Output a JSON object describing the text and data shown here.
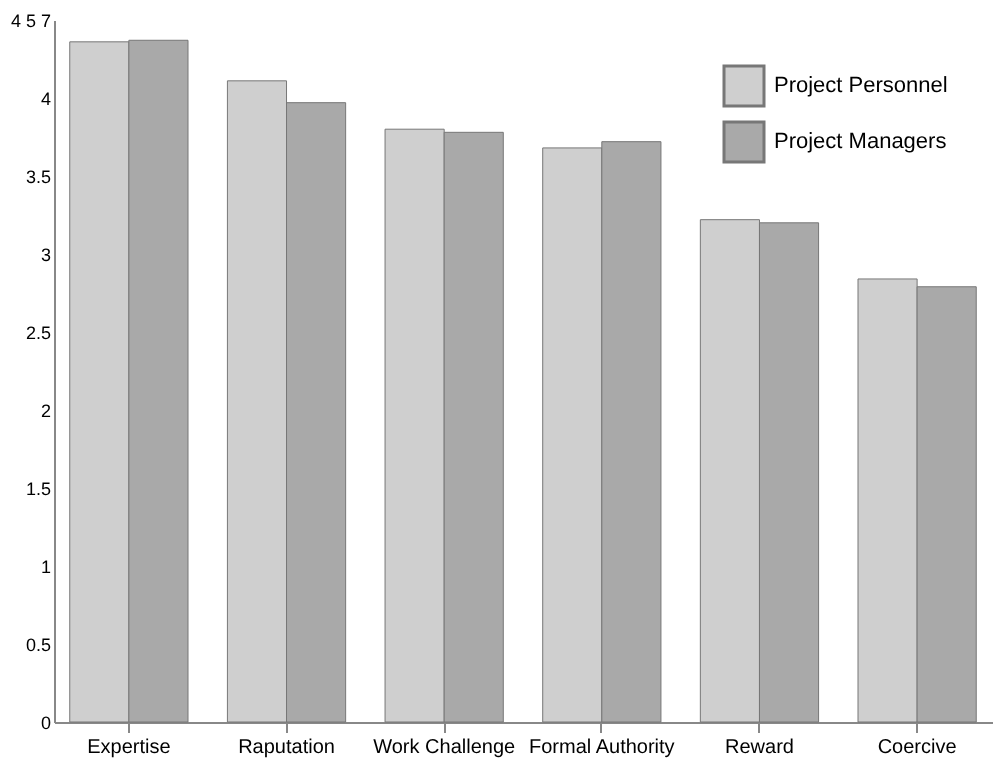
{
  "chart_data": {
    "type": "bar",
    "categories": [
      "Expertise",
      "Raputation",
      "Work Challenge",
      "Formal Authority",
      "Reward",
      "Coercive"
    ],
    "series": [
      {
        "name": "Project Personnel",
        "color": "#cfcfcf",
        "values": [
          4.36,
          4.11,
          3.8,
          3.68,
          3.22,
          2.84
        ]
      },
      {
        "name": "Project Managers",
        "color": "#a9a9a9",
        "values": [
          4.37,
          3.97,
          3.78,
          3.72,
          3.2,
          2.79
        ]
      }
    ],
    "ylim": [
      0,
      4.5
    ],
    "yticks": [
      0,
      0.5,
      1,
      1.5,
      2,
      2.5,
      3,
      3.5,
      4,
      {
        "value": 4.5,
        "label": "4 5 7"
      }
    ],
    "grid": false,
    "legend": "top right"
  }
}
